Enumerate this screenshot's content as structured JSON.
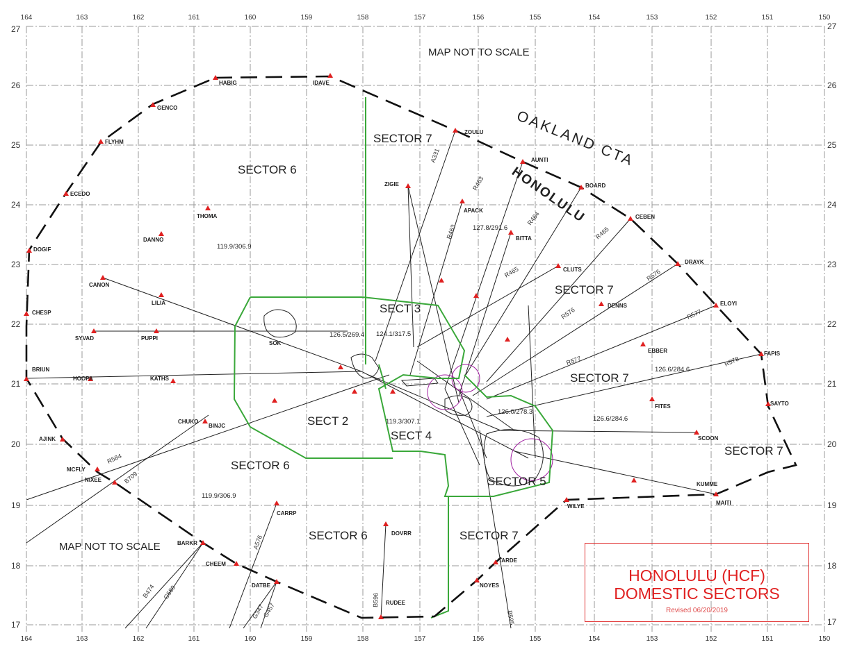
{
  "title_box": {
    "line1": "HONOLULU  (HCF)",
    "line2": "DOMESTIC SECTORS",
    "revised": "Revised 06/20/2019"
  },
  "notes": [
    "MAP NOT TO SCALE",
    "MAP NOT TO SCALE"
  ],
  "airspace": {
    "cta": "OAKLAND CTA",
    "fir": "HONOLULU"
  },
  "longitudes_top": [
    "164",
    "163",
    "162",
    "161",
    "160",
    "159",
    "158",
    "157",
    "156",
    "155",
    "154",
    "153",
    "152",
    "151",
    "150"
  ],
  "longitudes_bottom": [
    "164",
    "163",
    "162",
    "161",
    "160",
    "159",
    "158",
    "157",
    "156",
    "155",
    "154",
    "153",
    "152",
    "151",
    "150"
  ],
  "latitudes_left": [
    "27",
    "26",
    "25",
    "24",
    "23",
    "22",
    "21",
    "20",
    "19",
    "18",
    "17"
  ],
  "latitudes_right": [
    "27",
    "26",
    "25",
    "24",
    "23",
    "22",
    "21",
    "20",
    "19",
    "18",
    "17"
  ],
  "sectors": [
    {
      "name": "SECTOR 6"
    },
    {
      "name": "SECTOR 7"
    },
    {
      "name": "SECT 3"
    },
    {
      "name": "SECTOR 7"
    },
    {
      "name": "SECTOR 7"
    },
    {
      "name": "SECT 2"
    },
    {
      "name": "SECT 4"
    },
    {
      "name": "SECTOR 6"
    },
    {
      "name": "SECTOR 5"
    },
    {
      "name": "SECTOR 6"
    },
    {
      "name": "SECTOR 7"
    },
    {
      "name": "SECTOR 7"
    }
  ],
  "frequencies": [
    "119.9/306.9",
    "127.8/291.6",
    "126.5/269.4",
    "124.1/317.5",
    "119.3/307.1",
    "126.0/278.3",
    "126.6/284.6",
    "126.6/284.6",
    "119.9/306.9"
  ],
  "fixes": [
    {
      "name": "HABIG"
    },
    {
      "name": "IDAVE"
    },
    {
      "name": "GENCO"
    },
    {
      "name": "FLYHM"
    },
    {
      "name": "ECEDO"
    },
    {
      "name": "DOGIF"
    },
    {
      "name": "CHESP"
    },
    {
      "name": "BRIUN"
    },
    {
      "name": "AJINK"
    },
    {
      "name": "MCFLY"
    },
    {
      "name": "NIXEE"
    },
    {
      "name": "CHUKO"
    },
    {
      "name": "BINJC"
    },
    {
      "name": "CANON"
    },
    {
      "name": "LILIA"
    },
    {
      "name": "SYVAD"
    },
    {
      "name": "PUPPI"
    },
    {
      "name": "HOOPA"
    },
    {
      "name": "KATHS"
    },
    {
      "name": "THOMA"
    },
    {
      "name": "DANNO"
    },
    {
      "name": "SOK"
    },
    {
      "name": "ZOULU"
    },
    {
      "name": "ZIGIE"
    },
    {
      "name": "AUNTI"
    },
    {
      "name": "APACK"
    },
    {
      "name": "BOARD"
    },
    {
      "name": "BITTA"
    },
    {
      "name": "CEBEN"
    },
    {
      "name": "CLUTS"
    },
    {
      "name": "DRAYK"
    },
    {
      "name": "DENNS"
    },
    {
      "name": "ELOYI"
    },
    {
      "name": "EBBER"
    },
    {
      "name": "FAPIS"
    },
    {
      "name": "FITES"
    },
    {
      "name": "SAYTO"
    },
    {
      "name": "SCOON"
    },
    {
      "name": "KUMME"
    },
    {
      "name": "MAITI"
    },
    {
      "name": "WILYE"
    },
    {
      "name": "TARDE"
    },
    {
      "name": "NOYES"
    },
    {
      "name": "DOVRR"
    },
    {
      "name": "RUDEE"
    },
    {
      "name": "DATBE"
    },
    {
      "name": "CHEEM"
    },
    {
      "name": "BARKR"
    },
    {
      "name": "CARRP"
    }
  ],
  "airways": [
    {
      "name": "A331"
    },
    {
      "name": "R463"
    },
    {
      "name": "R463"
    },
    {
      "name": "R464"
    },
    {
      "name": "R465"
    },
    {
      "name": "R465"
    },
    {
      "name": "R576"
    },
    {
      "name": "R576"
    },
    {
      "name": "R577"
    },
    {
      "name": "R577"
    },
    {
      "name": "R578"
    },
    {
      "name": "R584"
    },
    {
      "name": "B709"
    },
    {
      "name": "A576"
    },
    {
      "name": "B474"
    },
    {
      "name": "G580"
    },
    {
      "name": "G347"
    },
    {
      "name": "G457"
    },
    {
      "name": "B596"
    },
    {
      "name": "B595"
    }
  ]
}
